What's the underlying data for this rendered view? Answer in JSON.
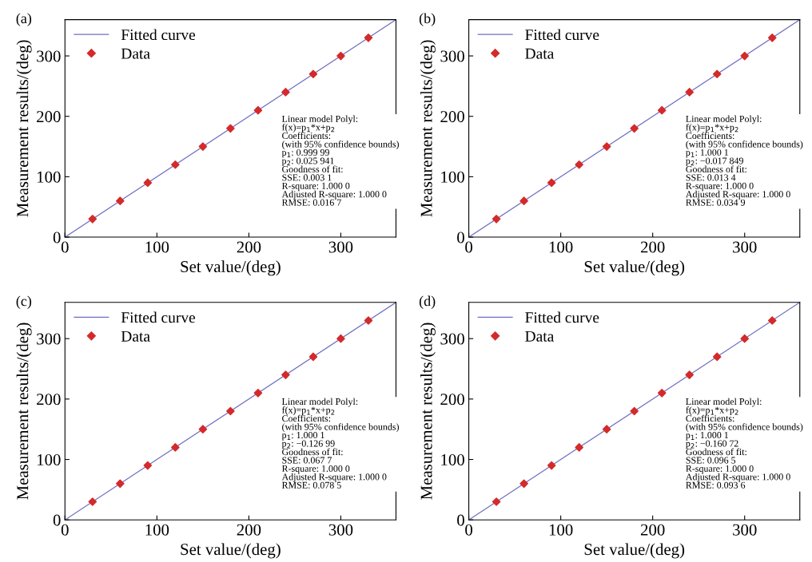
{
  "chart_data": [
    {
      "type": "scatter",
      "title": "(a)",
      "xlabel": "Set value/(deg)",
      "ylabel": "Measurement results/(deg)",
      "xlim": [
        0,
        360
      ],
      "ylim": [
        0,
        360
      ],
      "xticks": [
        0,
        100,
        200,
        300
      ],
      "yticks": [
        0,
        100,
        200,
        300
      ],
      "legend": "top left",
      "grid": false,
      "series": [
        {
          "name": "Fitted curve",
          "type": "line",
          "color": "#6f6fc4",
          "marker": "none",
          "line_style": "solid",
          "x": [
            0,
            360
          ],
          "values": [
            0,
            360
          ]
        },
        {
          "name": "Data",
          "color": "#d42a2a",
          "marker": "diamond",
          "x": [
            30,
            60,
            90,
            120,
            150,
            180,
            210,
            240,
            270,
            300,
            330
          ],
          "values": [
            30,
            60,
            90,
            120,
            150,
            180,
            210,
            240,
            270,
            300,
            330
          ]
        }
      ],
      "annotations": [
        "Linear model Polyl:\nf(x)=p$_{1}$*x+p$_{2}$\nCoefficients:\n(with 95% confidence bounds)\np$_{1}$: 0.999 99\np$_{2}$: 0.025 941\nGoodness of fit:\nSSE: 0.003 1\nR-square: 1.000 0\nAdjusted R-square: 1.000 0\nRMSE: 0.016 7"
      ]
    },
    {
      "type": "scatter",
      "title": "(b)",
      "xlabel": "Set value/(deg)",
      "ylabel": "Measurement results/(deg)",
      "xlim": [
        0,
        360
      ],
      "ylim": [
        0,
        360
      ],
      "xticks": [
        0,
        100,
        200,
        300
      ],
      "yticks": [
        0,
        100,
        200,
        300
      ],
      "legend": "top left",
      "grid": false,
      "series": [
        {
          "name": "Fitted curve",
          "type": "line",
          "color": "#6f6fc4",
          "marker": "none",
          "line_style": "solid",
          "x": [
            0,
            360
          ],
          "values": [
            0,
            360
          ]
        },
        {
          "name": "Data",
          "color": "#d42a2a",
          "marker": "diamond",
          "x": [
            30,
            60,
            90,
            120,
            150,
            180,
            210,
            240,
            270,
            300,
            330
          ],
          "values": [
            30,
            60,
            90,
            120,
            150,
            180,
            210,
            240,
            270,
            300,
            330
          ]
        }
      ],
      "annotations": [
        "Linear model Polyl:\nf(x)=p$_{1}$*x+p$_{2}$\nCoefficients:\n(with 95% confidence bounds)\np$_{1}$: 1.000 1\np$_{2}$: −0.017 849\nGoodness of fit:\nSSE: 0.013 4\nR-square: 1.000 0\nAdjusted R-square: 1.000 0\nRMSE: 0.034 9"
      ]
    },
    {
      "type": "scatter",
      "title": "(c)",
      "xlabel": "Set value/(deg)",
      "ylabel": "Measurement results/(deg)",
      "xlim": [
        0,
        360
      ],
      "ylim": [
        0,
        360
      ],
      "xticks": [
        0,
        100,
        200,
        300
      ],
      "yticks": [
        0,
        100,
        200,
        300
      ],
      "legend": "top left",
      "grid": false,
      "series": [
        {
          "name": "Fitted curve",
          "type": "line",
          "color": "#6f6fc4",
          "marker": "none",
          "line_style": "solid",
          "x": [
            0,
            360
          ],
          "values": [
            0,
            360
          ]
        },
        {
          "name": "Data",
          "color": "#d42a2a",
          "marker": "diamond",
          "x": [
            30,
            60,
            90,
            120,
            150,
            180,
            210,
            240,
            270,
            300,
            330
          ],
          "values": [
            30,
            60,
            90,
            120,
            150,
            180,
            210,
            240,
            270,
            300,
            330
          ]
        }
      ],
      "annotations": [
        "Linear model Polyl:\nf(x)=p$_{1}$*x+p$_{2}$\nCoefficients:\n(with 95% confidence bounds)\np$_{1}$: 1.000 1\np$_{2}$: −0.126 99\nGoodness of fit:\nSSE: 0.067 7\nR-square: 1.000 0\nAdjusted R-square: 1.000 0\nRMSE: 0.078 5"
      ]
    },
    {
      "type": "scatter",
      "title": "(d)",
      "xlabel": "Set value/(deg)",
      "ylabel": "Measurement results/(deg)",
      "xlim": [
        0,
        360
      ],
      "ylim": [
        0,
        360
      ],
      "xticks": [
        0,
        100,
        200,
        300
      ],
      "yticks": [
        0,
        100,
        200,
        300
      ],
      "legend": "top left",
      "grid": false,
      "series": [
        {
          "name": "Fitted curve",
          "type": "line",
          "color": "#6f6fc4",
          "marker": "none",
          "line_style": "solid",
          "x": [
            0,
            360
          ],
          "values": [
            0,
            360
          ]
        },
        {
          "name": "Data",
          "color": "#d42a2a",
          "marker": "diamond",
          "x": [
            30,
            60,
            90,
            120,
            150,
            180,
            210,
            240,
            270,
            300,
            330
          ],
          "values": [
            30,
            60,
            90,
            120,
            150,
            180,
            210,
            240,
            270,
            300,
            330
          ]
        }
      ],
      "annotations": [
        "Linear model Polyl:\nf(x)=p$_{1}$*x+p$_{2}$\nCoefficients:\n(with 95% confidence bounds)\np$_{1}$: 1.000 1\np$_{2}$: −0.160 72\nGoodness of fit:\nSSE: 0.096 5\nR-square: 1.000 0\nAdjusted R-square: 1.000 0\nRMSE: 0.093 6"
      ]
    }
  ]
}
